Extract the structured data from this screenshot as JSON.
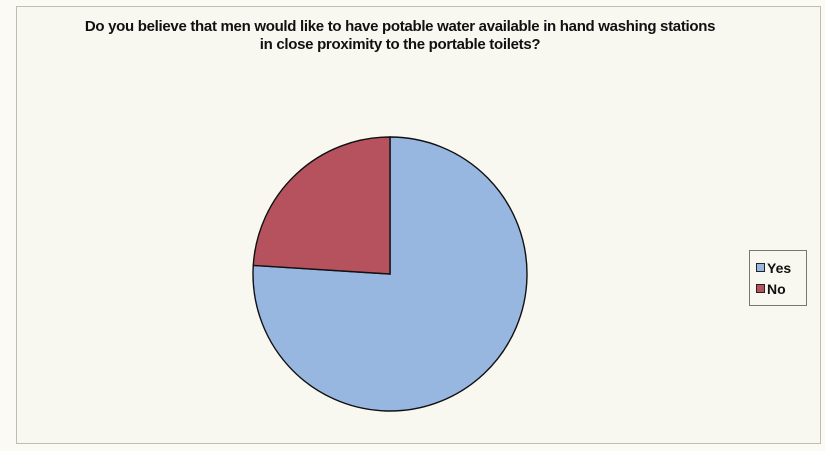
{
  "chart_data": {
    "type": "pie",
    "title": "Do you believe that men would like to have potable water available in hand washing stations in close proximity to the portable toilets?",
    "series": [
      {
        "name": "Yes",
        "value": 76,
        "color": "#97b7e1"
      },
      {
        "name": "No",
        "value": 24,
        "color": "#b5525e"
      }
    ],
    "legend_position": "right",
    "start_angle_deg": 0,
    "direction": "clockwise"
  }
}
